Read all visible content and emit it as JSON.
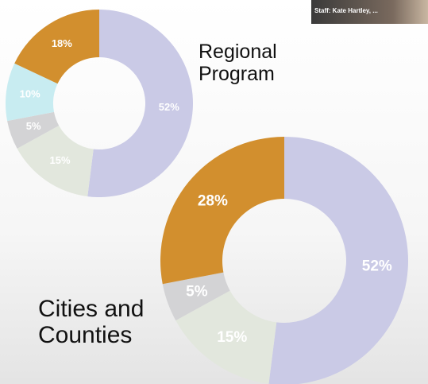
{
  "overlay": {
    "label": "Staff: Kate Hartley, ..."
  },
  "chart_data": [
    {
      "type": "donut",
      "title": "Regional Program",
      "categories": [
        null,
        null,
        null,
        null,
        null
      ],
      "values": [
        52,
        15,
        5,
        10,
        18
      ],
      "value_labels": [
        "52%",
        "15%",
        "5%",
        "10%",
        "18%"
      ],
      "colors": [
        "#cacae6",
        "#e2e7dd",
        "#d3d3d5",
        "#c8ecf1",
        "#d28f2e"
      ]
    },
    {
      "type": "donut",
      "title": "Cities and Counties",
      "categories": [
        null,
        null,
        null,
        null
      ],
      "values": [
        52,
        15,
        5,
        28
      ],
      "value_labels": [
        "52%",
        "15%",
        "5%",
        "28%"
      ],
      "colors": [
        "#cacae6",
        "#e2e7dd",
        "#d3d3d5",
        "#d28f2e"
      ]
    }
  ]
}
